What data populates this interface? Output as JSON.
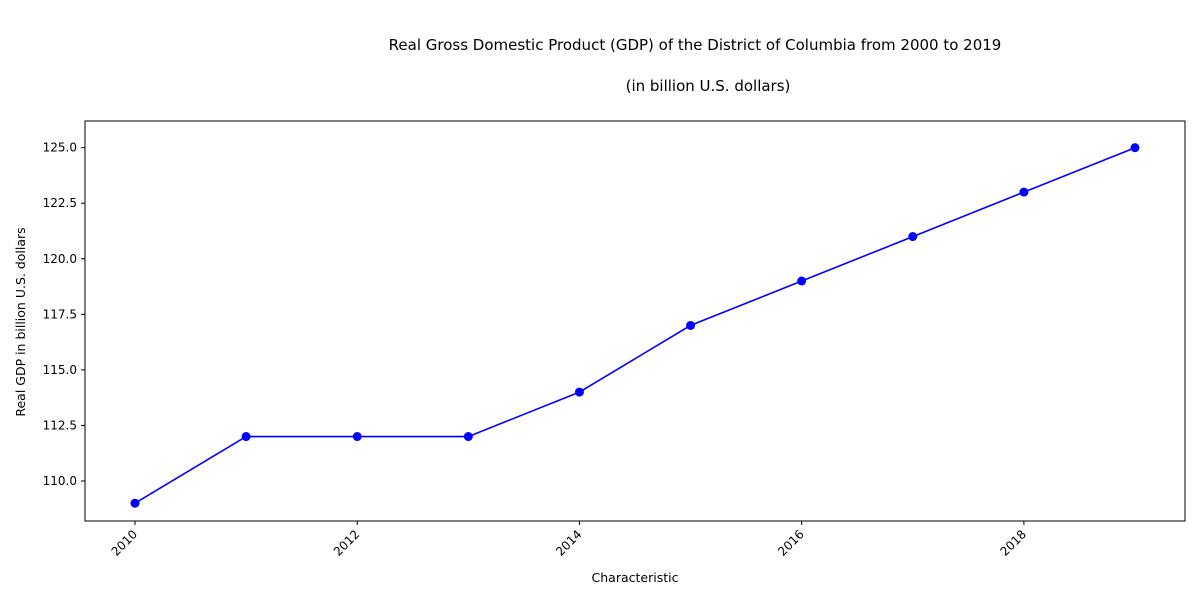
{
  "chart_data": {
    "type": "line",
    "title": "Real Gross Domestic Product (GDP) of the District of Columbia from 2000 to 2019",
    "subtitle": "(in billion U.S. dollars)",
    "xlabel": "Characteristic",
    "ylabel": "Real GDP in billion U.S. dollars",
    "x": [
      2010,
      2011,
      2012,
      2013,
      2014,
      2015,
      2016,
      2017,
      2018,
      2019
    ],
    "values": [
      109,
      112,
      112,
      112,
      114,
      117,
      119,
      121,
      123,
      125
    ],
    "xlim": [
      2009.55,
      2019.45
    ],
    "ylim": [
      108.2,
      126.2
    ],
    "xticks": [
      "2010",
      "2012",
      "2014",
      "2016",
      "2018"
    ],
    "xtick_values": [
      2010,
      2012,
      2014,
      2016,
      2018
    ],
    "yticks": [
      "107.5",
      "110.0",
      "112.5",
      "115.0",
      "117.5",
      "120.0",
      "122.5",
      "125.0"
    ],
    "ytick_values": [
      107.5,
      110.0,
      112.5,
      115.0,
      117.5,
      120.0,
      122.5,
      125.0
    ],
    "line_color": "#0000ff",
    "grid": false,
    "legend": "none"
  }
}
